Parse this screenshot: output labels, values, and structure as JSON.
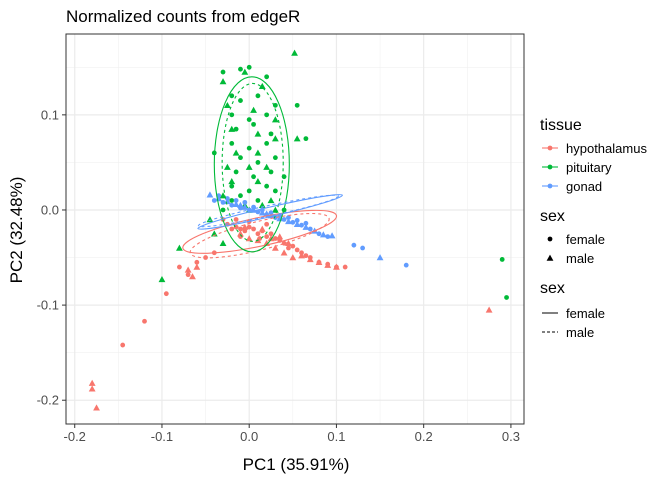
{
  "chart_data": {
    "type": "scatter",
    "title": "Normalized counts from edgeR",
    "xlabel": "PC1 (35.91%)",
    "ylabel": "PC2 (32.48%)",
    "xlim": [
      -0.21,
      0.315
    ],
    "ylim": [
      -0.225,
      0.185
    ],
    "x_ticks": [
      -0.2,
      -0.1,
      0.0,
      0.1,
      0.2,
      0.3
    ],
    "x_tick_labels": [
      "-0.2",
      "-0.1",
      "0.0",
      "0.1",
      "0.2",
      "0.3"
    ],
    "y_ticks": [
      -0.2,
      -0.1,
      0.0,
      0.1
    ],
    "y_tick_labels": [
      "-0.2",
      "-0.1",
      "0.0",
      "0.1"
    ],
    "grid": true,
    "legend_placement": "right",
    "legends": {
      "color": {
        "title": "tissue",
        "entries": [
          {
            "label": "hypothalamus",
            "color": "#F8766D"
          },
          {
            "label": "pituitary",
            "color": "#00BA38"
          },
          {
            "label": "gonad",
            "color": "#619CFF"
          }
        ]
      },
      "shape": {
        "title": "sex",
        "entries": [
          {
            "label": "female",
            "shape": "circle"
          },
          {
            "label": "male",
            "shape": "triangle"
          }
        ]
      },
      "linetype": {
        "title": "sex",
        "entries": [
          {
            "label": "female",
            "linetype": "solid"
          },
          {
            "label": "male",
            "linetype": "dashed"
          }
        ]
      }
    },
    "series": [
      {
        "tissue": "hypothalamus",
        "sex": "female",
        "points": [
          [
            -0.145,
            -0.142
          ],
          [
            -0.12,
            -0.117
          ],
          [
            -0.095,
            -0.088
          ],
          [
            -0.07,
            -0.068
          ],
          [
            -0.08,
            -0.06
          ],
          [
            -0.06,
            -0.055
          ],
          [
            -0.05,
            -0.05
          ],
          [
            -0.04,
            -0.045
          ],
          [
            -0.03,
            -0.01
          ],
          [
            -0.025,
            -0.015
          ],
          [
            -0.02,
            -0.02
          ],
          [
            -0.015,
            -0.018
          ],
          [
            -0.01,
            -0.02
          ],
          [
            -0.005,
            -0.022
          ],
          [
            0.0,
            -0.018
          ],
          [
            0.005,
            -0.02
          ],
          [
            0.01,
            -0.025
          ],
          [
            0.015,
            -0.022
          ],
          [
            0.02,
            -0.028
          ],
          [
            0.025,
            -0.025
          ],
          [
            0.03,
            -0.03
          ],
          [
            0.035,
            -0.032
          ],
          [
            0.04,
            -0.035
          ],
          [
            0.045,
            -0.04
          ],
          [
            0.05,
            -0.038
          ],
          [
            0.055,
            -0.042
          ],
          [
            0.06,
            -0.045
          ],
          [
            0.065,
            -0.048
          ],
          [
            0.07,
            -0.05
          ],
          [
            0.08,
            -0.055
          ],
          [
            0.09,
            -0.057
          ],
          [
            0.1,
            -0.06
          ],
          [
            0.11,
            -0.06
          ],
          [
            -0.015,
            -0.01
          ],
          [
            0.0,
            -0.012
          ],
          [
            0.02,
            -0.015
          ],
          [
            -0.01,
            -0.028
          ],
          [
            0.012,
            -0.03
          ]
        ]
      },
      {
        "tissue": "hypothalamus",
        "sex": "male",
        "points": [
          [
            -0.18,
            -0.182
          ],
          [
            -0.18,
            -0.188
          ],
          [
            -0.175,
            -0.208
          ],
          [
            0.275,
            -0.105
          ],
          [
            -0.06,
            -0.06
          ],
          [
            -0.07,
            -0.063
          ],
          [
            -0.065,
            -0.07
          ],
          [
            -0.01,
            -0.025
          ],
          [
            0.0,
            -0.03
          ],
          [
            0.01,
            -0.032
          ],
          [
            0.02,
            -0.035
          ],
          [
            0.03,
            -0.04
          ],
          [
            0.04,
            -0.045
          ],
          [
            0.05,
            -0.05
          ],
          [
            0.06,
            -0.048
          ],
          [
            0.07,
            -0.052
          ],
          [
            0.08,
            -0.055
          ],
          [
            0.09,
            -0.058
          ],
          [
            0.1,
            -0.06
          ],
          [
            -0.005,
            -0.018
          ],
          [
            0.015,
            -0.02
          ],
          [
            0.025,
            -0.03
          ],
          [
            0.035,
            -0.028
          ],
          [
            0.045,
            -0.035
          ]
        ]
      },
      {
        "tissue": "pituitary",
        "sex": "female",
        "points": [
          [
            -0.03,
            0.145
          ],
          [
            -0.01,
            0.148
          ],
          [
            0.0,
            0.15
          ],
          [
            0.02,
            0.14
          ],
          [
            -0.02,
            0.12
          ],
          [
            -0.01,
            0.115
          ],
          [
            0.01,
            0.12
          ],
          [
            0.03,
            0.11
          ],
          [
            -0.02,
            0.1
          ],
          [
            0.0,
            0.095
          ],
          [
            0.02,
            0.1
          ],
          [
            -0.015,
            0.085
          ],
          [
            0.005,
            0.09
          ],
          [
            0.025,
            0.08
          ],
          [
            -0.02,
            0.07
          ],
          [
            0.0,
            0.065
          ],
          [
            0.02,
            0.07
          ],
          [
            -0.01,
            0.055
          ],
          [
            0.01,
            0.05
          ],
          [
            0.03,
            0.055
          ],
          [
            -0.015,
            0.04
          ],
          [
            0.005,
            0.035
          ],
          [
            0.025,
            0.04
          ],
          [
            -0.02,
            0.025
          ],
          [
            0.0,
            0.02
          ],
          [
            0.02,
            0.025
          ],
          [
            -0.01,
            0.015
          ],
          [
            0.01,
            0.01
          ],
          [
            -0.02,
            0.01
          ],
          [
            0.03,
            0.02
          ],
          [
            0.04,
            0.0
          ],
          [
            -0.03,
            0.0
          ],
          [
            0.055,
            0.11
          ],
          [
            0.065,
            0.075
          ],
          [
            0.295,
            -0.092
          ],
          [
            0.29,
            -0.052
          ],
          [
            -0.04,
            0.06
          ],
          [
            0.04,
            0.035
          ]
        ]
      },
      {
        "tissue": "pituitary",
        "sex": "male",
        "points": [
          [
            0.052,
            0.165
          ],
          [
            -0.005,
            0.145
          ],
          [
            -0.03,
            0.135
          ],
          [
            0.015,
            0.13
          ],
          [
            -0.025,
            0.11
          ],
          [
            0.005,
            0.105
          ],
          [
            0.03,
            0.095
          ],
          [
            -0.02,
            0.085
          ],
          [
            0.01,
            0.08
          ],
          [
            0.03,
            0.075
          ],
          [
            -0.015,
            0.06
          ],
          [
            0.01,
            0.06
          ],
          [
            -0.025,
            0.045
          ],
          [
            0.0,
            0.045
          ],
          [
            0.02,
            0.045
          ],
          [
            -0.02,
            0.03
          ],
          [
            0.01,
            0.03
          ],
          [
            -0.005,
            0.005
          ],
          [
            0.015,
            0.005
          ],
          [
            -0.03,
            0.015
          ],
          [
            0.025,
            0.01
          ],
          [
            -0.045,
            -0.01
          ],
          [
            -0.04,
            -0.025
          ],
          [
            -0.08,
            -0.04
          ],
          [
            -0.1,
            -0.073
          ],
          [
            -0.03,
            -0.035
          ],
          [
            0.0,
            0.0
          ],
          [
            0.03,
            0.0
          ],
          [
            0.055,
            0.075
          ]
        ]
      },
      {
        "tissue": "gonad",
        "sex": "female",
        "points": [
          [
            -0.04,
            0.01
          ],
          [
            -0.03,
            0.008
          ],
          [
            -0.02,
            0.005
          ],
          [
            -0.01,
            0.002
          ],
          [
            0.0,
            0.0
          ],
          [
            0.01,
            -0.002
          ],
          [
            0.02,
            -0.005
          ],
          [
            0.03,
            -0.008
          ],
          [
            0.04,
            -0.01
          ],
          [
            0.05,
            -0.013
          ],
          [
            0.06,
            -0.016
          ],
          [
            0.07,
            -0.02
          ],
          [
            0.08,
            -0.025
          ],
          [
            0.09,
            -0.028
          ],
          [
            0.12,
            -0.037
          ],
          [
            0.13,
            -0.04
          ],
          [
            0.18,
            -0.058
          ],
          [
            -0.035,
            0.015
          ],
          [
            -0.025,
            0.012
          ],
          [
            -0.015,
            0.01
          ],
          [
            -0.005,
            0.008
          ],
          [
            0.005,
            0.003
          ],
          [
            0.015,
            0.0
          ],
          [
            0.025,
            -0.003
          ],
          [
            0.035,
            -0.006
          ],
          [
            0.045,
            -0.008
          ],
          [
            0.055,
            -0.011
          ],
          [
            0.065,
            -0.014
          ]
        ]
      },
      {
        "tissue": "gonad",
        "sex": "male",
        "points": [
          [
            -0.045,
            0.016
          ],
          [
            -0.035,
            0.012
          ],
          [
            -0.025,
            0.009
          ],
          [
            -0.015,
            0.006
          ],
          [
            -0.005,
            0.003
          ],
          [
            0.005,
            0.0
          ],
          [
            0.015,
            -0.003
          ],
          [
            0.025,
            -0.006
          ],
          [
            0.035,
            -0.009
          ],
          [
            0.045,
            -0.012
          ],
          [
            0.055,
            -0.015
          ],
          [
            0.065,
            -0.018
          ],
          [
            0.075,
            -0.022
          ],
          [
            0.085,
            -0.026
          ],
          [
            0.095,
            -0.027
          ],
          [
            0.15,
            -0.05
          ],
          [
            -0.01,
            0.005
          ],
          [
            0.02,
            -0.004
          ]
        ]
      }
    ],
    "ellipses": [
      {
        "tissue": "hypothalamus",
        "sex": "female",
        "cx": 0.012,
        "cy": -0.023,
        "rx": 0.09,
        "ry": 0.015,
        "angle_deg": -12
      },
      {
        "tissue": "hypothalamus",
        "sex": "male",
        "cx": 0.012,
        "cy": -0.027,
        "rx": 0.082,
        "ry": 0.015,
        "angle_deg": -14
      },
      {
        "tissue": "pituitary",
        "sex": "female",
        "cx": 0.003,
        "cy": 0.048,
        "rx": 0.043,
        "ry": 0.092,
        "angle_deg": 0
      },
      {
        "tissue": "pituitary",
        "sex": "male",
        "cx": 0.004,
        "cy": 0.05,
        "rx": 0.035,
        "ry": 0.083,
        "angle_deg": 0
      },
      {
        "tissue": "gonad",
        "sex": "female",
        "cx": 0.024,
        "cy": -0.002,
        "rx": 0.085,
        "ry": 0.005,
        "angle_deg": -13
      },
      {
        "tissue": "gonad",
        "sex": "male",
        "cx": 0.022,
        "cy": -0.001,
        "rx": 0.082,
        "ry": 0.0055,
        "angle_deg": -12
      }
    ]
  }
}
